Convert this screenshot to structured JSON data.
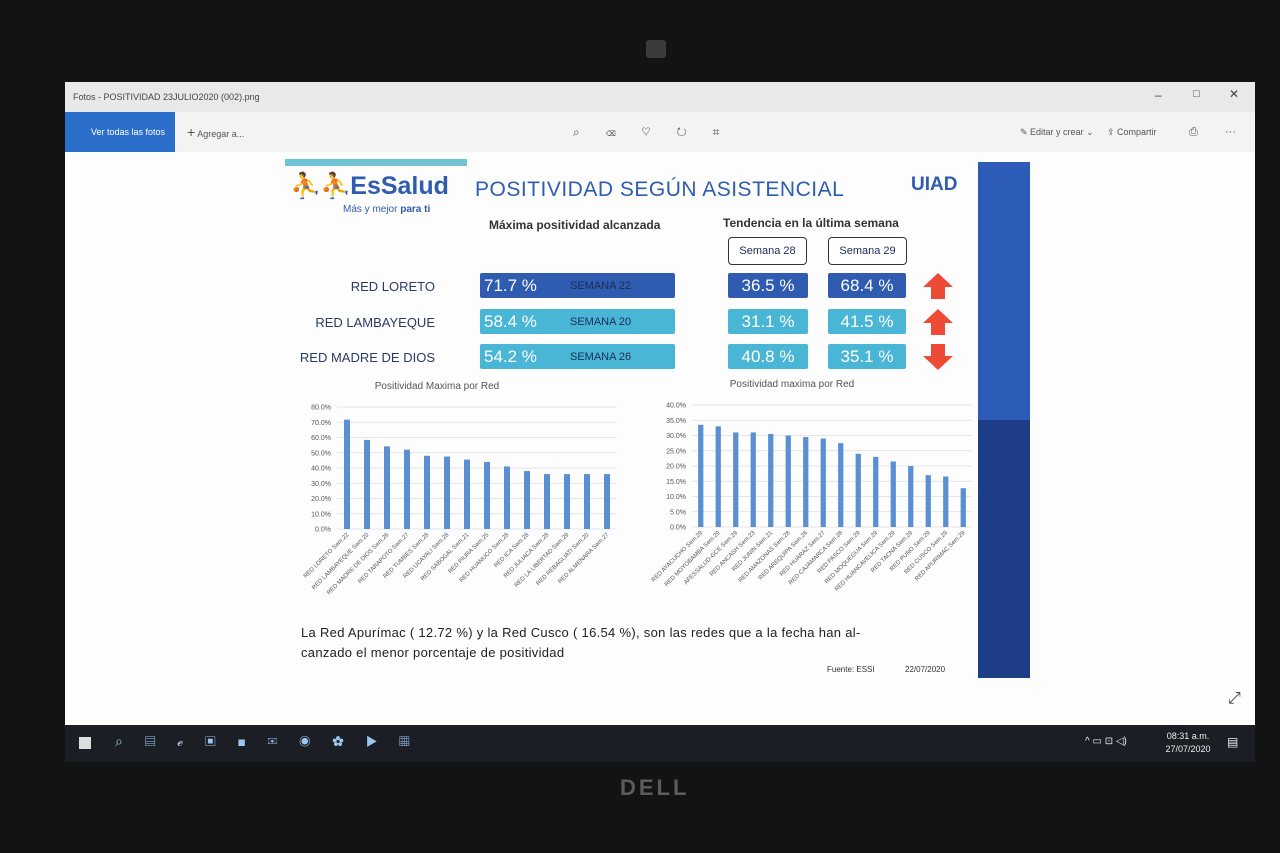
{
  "window": {
    "title": "Fotos - POSITIVIDAD 23JULIO2020 (002).png"
  },
  "toolbar": {
    "view_all": "Ver todas las fotos",
    "add": "Agregar a...",
    "edit": "Editar y crear",
    "share": "Compartir"
  },
  "infographic": {
    "logo": "EsSalud",
    "tagline": "Más y mejor",
    "tagline_bold": "para ti",
    "title": "POSITIVIDAD SEGÚN ASISTENCIAL",
    "unit": "UIAD",
    "max_header": "Máxima positividad alcanzada",
    "trend_header": "Tendencia en la última semana",
    "week_a": "Semana 28",
    "week_b": "Semana 29",
    "rows": [
      {
        "name": "RED LORETO",
        "max": "71.7 %",
        "week": "SEMANA 22",
        "w28": "36.5 %",
        "w29": "68.4 %",
        "trend": "up",
        "color": "#2f5cb0"
      },
      {
        "name": "RED LAMBAYEQUE",
        "max": "58.4 %",
        "week": "SEMANA 20",
        "w28": "31.1 %",
        "w29": "41.5 %",
        "trend": "up",
        "color": "#49b6d6"
      },
      {
        "name": "RED MADRE DE DIOS",
        "max": "54.2 %",
        "week": "SEMANA 26",
        "w28": "40.8 %",
        "w29": "35.1 %",
        "trend": "down",
        "color": "#49b6d6"
      }
    ],
    "note_line1": "La Red Apurímac  ( 12.72 %) y la Red Cusco ( 16.54  %),  son las redes que a la fecha han al-",
    "note_line2": "canzado el menor porcentaje  de positividad",
    "source": "Fuente: ESSI",
    "date": "22/07/2020"
  },
  "chart_data": [
    {
      "type": "bar",
      "title": "Positividad Maxima por Red",
      "color": "#5b8fd3",
      "grid": true,
      "categories": [
        "RED LORETO Sem.22",
        "RED LAMBAYEQUE Sem.20",
        "RED MADRE DE DIOS Sem.26",
        "RED TARAPOTO Sem.27",
        "RED TUMBES Sem.28",
        "RED UCAYALI Sem.28",
        "RED SABOGAL Sem.21",
        "RED PIURA Sem.25",
        "RED HUANUCO Sem.28",
        "RED ICA Sem.28",
        "RED JULIACA Sem.28",
        "RED LA LIBERTAD Sem.29",
        "RED REBAGLIATI Sem.20",
        "RED ALMENARA Sem.27"
      ],
      "values": [
        71.7,
        58.4,
        54.2,
        52,
        48,
        47.5,
        45.5,
        44,
        41,
        38,
        36,
        36,
        36,
        36
      ],
      "ylim": [
        0,
        80
      ],
      "yticks": [
        {
          "value": 0,
          "label": "0.0%"
        },
        {
          "value": 10,
          "label": "10.0%"
        },
        {
          "value": 20,
          "label": "20.0%"
        },
        {
          "value": 30,
          "label": "30.0%"
        },
        {
          "value": 40,
          "label": "40.0%"
        },
        {
          "value": 50,
          "label": "50.0%"
        },
        {
          "value": 60,
          "label": "60.0%"
        },
        {
          "value": 70,
          "label": "70.0%"
        },
        {
          "value": 80,
          "label": "80.0%"
        }
      ]
    },
    {
      "type": "bar",
      "title": "Positividad maxima por Red",
      "color": "#5b8fd3",
      "grid": true,
      "categories": [
        "RED AYACUCHO Sem.29",
        "RED MOYOBAMBA Sem.29",
        "AFESSALUD-GCE Sem.29",
        "RED ANCASH Sem.23",
        "RED JUNIN Sem.21",
        "RED AMAZONAS Sem.28",
        "RED AREQUIPA Sem.26",
        "RED HUARAZ Sem.27",
        "RED CAJAMARCA Sem.28",
        "RED PASCO Sem.29",
        "RED MOQUEGUA Sem.29",
        "RED HUANCAVELICA Sem.29",
        "RED TACNA Sem.29",
        "RED PUNO Sem.29",
        "RED CUSCO Sem.29",
        "RED APURIMAC Sem.29"
      ],
      "values": [
        33.5,
        33,
        31,
        31,
        30.5,
        30,
        29.5,
        29,
        27.5,
        24,
        23,
        21.5,
        20,
        17,
        16.54,
        12.72
      ],
      "ylim": [
        0,
        40
      ],
      "yticks": [
        {
          "value": 0,
          "label": "0.0%"
        },
        {
          "value": 5,
          "label": "5.0%"
        },
        {
          "value": 10,
          "label": "10.0%"
        },
        {
          "value": 15,
          "label": "15.0%"
        },
        {
          "value": 20,
          "label": "20.0%"
        },
        {
          "value": 25,
          "label": "25.0%"
        },
        {
          "value": 30,
          "label": "30.0%"
        },
        {
          "value": 35,
          "label": "35.0%"
        },
        {
          "value": 40,
          "label": "40.0%"
        }
      ]
    }
  ],
  "taskbar": {
    "time": "08:31 a.m.",
    "date": "27/07/2020"
  },
  "brand": "DELL"
}
